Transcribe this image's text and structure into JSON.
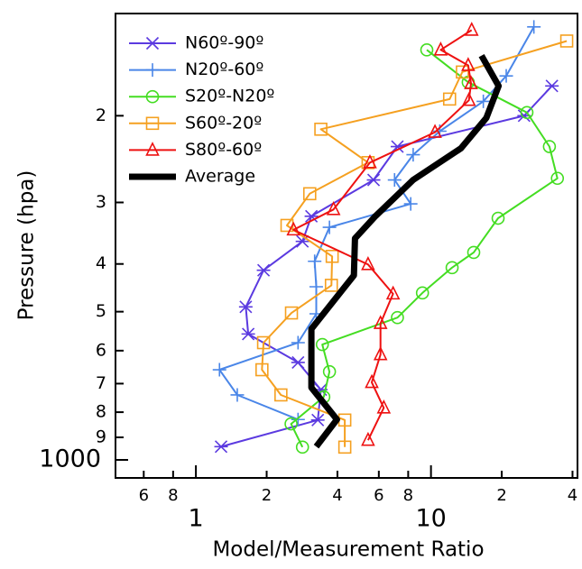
{
  "chart_data": {
    "type": "line",
    "x_label": "Model/Measurement Ratio",
    "y_label": "Pressure (hpa)",
    "xscale": "log",
    "yscale": "log",
    "y_inverted": true,
    "xlim": [
      0.455,
      42
    ],
    "ylim": [
      124,
      1088
    ],
    "xticks": [
      {
        "value": 0.6,
        "label": "6"
      },
      {
        "value": 0.8,
        "label": "8"
      },
      1,
      2,
      4,
      6,
      8,
      10,
      {
        "value": 20,
        "label": "2"
      },
      {
        "value": 40,
        "label": "4"
      }
    ],
    "yticks": [
      {
        "value": 200,
        "label": "2"
      },
      {
        "value": 300,
        "label": "3"
      },
      {
        "value": 400,
        "label": "4"
      },
      {
        "value": 500,
        "label": "5"
      },
      {
        "value": 600,
        "label": "6"
      },
      {
        "value": 700,
        "label": "7"
      },
      {
        "value": 800,
        "label": "8"
      },
      {
        "value": 900,
        "label": "9"
      },
      1000
    ],
    "legend": "upper-left",
    "series": [
      {
        "name": "N60º-90º",
        "color": "#5b3ae0",
        "marker": "asterisk",
        "x": [
          32.7,
          24.9,
          7.2,
          5.7,
          3.1,
          2.84,
          1.94,
          1.63,
          1.67,
          2.72,
          3.4,
          3.3,
          1.28
        ],
        "y": [
          174,
          200,
          231,
          270,
          320,
          360,
          412,
          489,
          555,
          634,
          720,
          830,
          940
        ]
      },
      {
        "name": "N20º-60º",
        "color": "#4a86e8",
        "marker": "plus",
        "x": [
          27.4,
          20.9,
          16.7,
          10.9,
          8.4,
          7.0,
          8.2,
          3.7,
          3.2,
          3.25,
          3.25,
          2.72,
          1.26,
          1.5,
          2.72
        ],
        "y": [
          132,
          166,
          187,
          215,
          240,
          270,
          302,
          337,
          395,
          445,
          505,
          578,
          656,
          738,
          828
        ]
      },
      {
        "name": "S20º-N20º",
        "color": "#44dd22",
        "marker": "circle",
        "x": [
          9.6,
          14.4,
          25.6,
          31.9,
          34.5,
          19.3,
          15.2,
          12.3,
          9.2,
          7.2,
          3.45,
          3.7,
          3.5,
          2.54,
          2.84
        ],
        "y": [
          147,
          171,
          197,
          231,
          268,
          323,
          379,
          407,
          458,
          514,
          583,
          662,
          745,
          845,
          942
        ]
      },
      {
        "name": "S60º-20º",
        "color": "#f5a020",
        "marker": "square",
        "x": [
          37.8,
          13.6,
          12.0,
          3.4,
          5.4,
          3.05,
          2.44,
          3.8,
          3.77,
          2.55,
          1.94,
          1.91,
          2.3,
          4.3,
          4.3
        ],
        "y": [
          141,
          163,
          185,
          213,
          249,
          288,
          334,
          386,
          442,
          503,
          578,
          656,
          738,
          830,
          942
        ]
      },
      {
        "name": "S80º-60º",
        "color": "#ee1111",
        "marker": "triangle",
        "x": [
          14.9,
          11.0,
          14.4,
          14.8,
          14.5,
          10.4,
          5.5,
          3.85,
          2.6,
          5.4,
          6.9,
          6.1,
          6.1,
          5.6,
          6.3,
          5.4
        ],
        "y": [
          134,
          147,
          158,
          172,
          186,
          216,
          249,
          310,
          341,
          401,
          460,
          528,
          611,
          696,
          784,
          912
        ]
      },
      {
        "name": "Average",
        "color": "#000000",
        "marker": "none",
        "line_width": 7,
        "x": [
          16.4,
          19.4,
          17.2,
          13.4,
          8.4,
          5.8,
          4.75,
          4.7,
          3.1,
          3.1,
          3.98,
          3.25
        ],
        "y": [
          151,
          174,
          202,
          233,
          270,
          320,
          355,
          422,
          542,
          713,
          828,
          940
        ]
      }
    ]
  }
}
